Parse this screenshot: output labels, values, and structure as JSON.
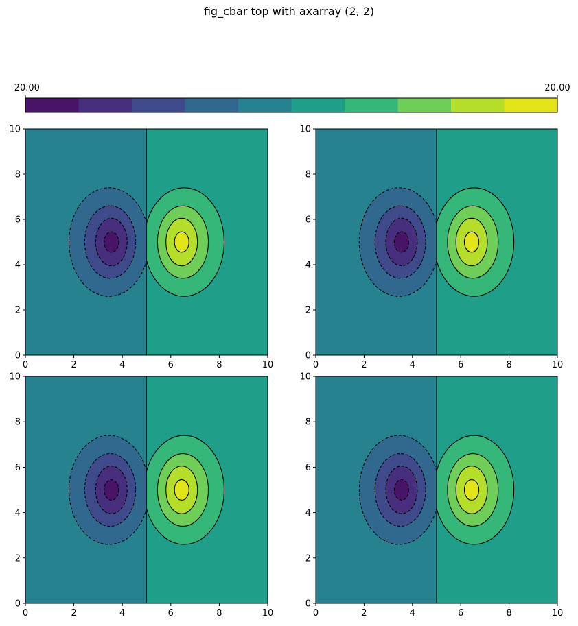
{
  "figure": {
    "title": "fig_cbar top with axarray (2, 2)"
  },
  "colors": {
    "levels": [
      "#481467",
      "#472f7d",
      "#3e4a89",
      "#31688e",
      "#26828e",
      "#1f9e89",
      "#35b779",
      "#6ece58",
      "#b5de2b",
      "#e3e418"
    ],
    "line": "#000000",
    "background": "#ffffff"
  },
  "colorbar": {
    "min_label": "-20.00",
    "max_label": "20.00",
    "vmin": -20,
    "vmax": 20,
    "n_levels": 10,
    "location": "top"
  },
  "chart_data": [
    {
      "type": "contour",
      "panel": "top-left",
      "x_ticks": [
        "0",
        "2",
        "4",
        "6",
        "8",
        "10"
      ],
      "y_ticks": [
        "0",
        "2",
        "4",
        "6",
        "8",
        "10"
      ],
      "xlim": [
        0,
        10
      ],
      "ylim": [
        0,
        10
      ],
      "levels": [
        -20,
        -16,
        -12,
        -8,
        -4,
        0,
        4,
        8,
        12,
        16,
        20
      ],
      "negative_lobe_center": [
        3.5,
        5
      ],
      "positive_lobe_center": [
        6.5,
        5
      ],
      "zero_line_x": 5,
      "negative_contours_style": "dashed",
      "positive_contours_style": "solid"
    },
    {
      "type": "contour",
      "panel": "top-right",
      "x_ticks": [
        "0",
        "2",
        "4",
        "6",
        "8",
        "10"
      ],
      "y_ticks": [
        "0",
        "2",
        "4",
        "6",
        "8",
        "10"
      ],
      "xlim": [
        0,
        10
      ],
      "ylim": [
        0,
        10
      ],
      "levels": [
        -20,
        -16,
        -12,
        -8,
        -4,
        0,
        4,
        8,
        12,
        16,
        20
      ],
      "negative_lobe_center": [
        3.5,
        5
      ],
      "positive_lobe_center": [
        6.5,
        5
      ],
      "zero_line_x": 5,
      "negative_contours_style": "dashed",
      "positive_contours_style": "solid"
    },
    {
      "type": "contour",
      "panel": "bottom-left",
      "x_ticks": [
        "0",
        "2",
        "4",
        "6",
        "8",
        "10"
      ],
      "y_ticks": [
        "0",
        "2",
        "4",
        "6",
        "8",
        "10"
      ],
      "xlim": [
        0,
        10
      ],
      "ylim": [
        0,
        10
      ],
      "levels": [
        -20,
        -16,
        -12,
        -8,
        -4,
        0,
        4,
        8,
        12,
        16,
        20
      ],
      "negative_lobe_center": [
        3.5,
        5
      ],
      "positive_lobe_center": [
        6.5,
        5
      ],
      "zero_line_x": 5,
      "negative_contours_style": "dashed",
      "positive_contours_style": "solid"
    },
    {
      "type": "contour",
      "panel": "bottom-right",
      "x_ticks": [
        "0",
        "2",
        "4",
        "6",
        "8",
        "10"
      ],
      "y_ticks": [
        "0",
        "2",
        "4",
        "6",
        "8",
        "10"
      ],
      "xlim": [
        0,
        10
      ],
      "ylim": [
        0,
        10
      ],
      "levels": [
        -20,
        -16,
        -12,
        -8,
        -4,
        0,
        4,
        8,
        12,
        16,
        20
      ],
      "negative_lobe_center": [
        3.5,
        5
      ],
      "positive_lobe_center": [
        6.5,
        5
      ],
      "zero_line_x": 5,
      "negative_contours_style": "dashed",
      "positive_contours_style": "solid"
    }
  ]
}
